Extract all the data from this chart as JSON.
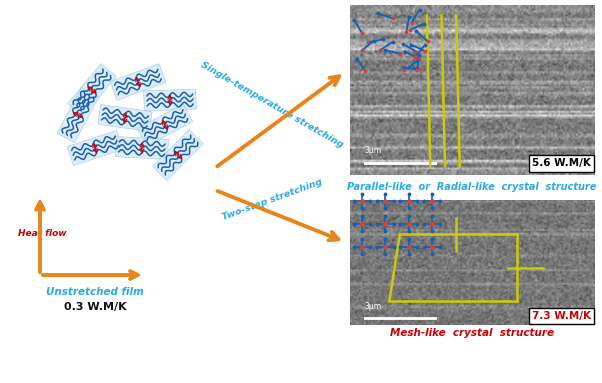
{
  "bg_color": "#ffffff",
  "orange_color": "#E8851A",
  "cyan_color": "#29ABE2",
  "blue_color": "#1A5FAF",
  "red_color": "#CC0000",
  "yellow_color": "#CCCC00",
  "black_color": "#111111",
  "label_unstretched": "Unstretched film",
  "label_03": "0.3 W.M/K",
  "label_56": "5.6 W.M/K",
  "label_73": "7.3 W.M/K",
  "label_heat": "Heat flow",
  "label_single": "Single-temperature stretching",
  "label_two": "Two-step stretching",
  "label_parallel": "Parallel-like  or  Radial-like  crystal  structure",
  "label_mesh": "Mesh-like  crystal  structure",
  "label_3um": "3μm"
}
